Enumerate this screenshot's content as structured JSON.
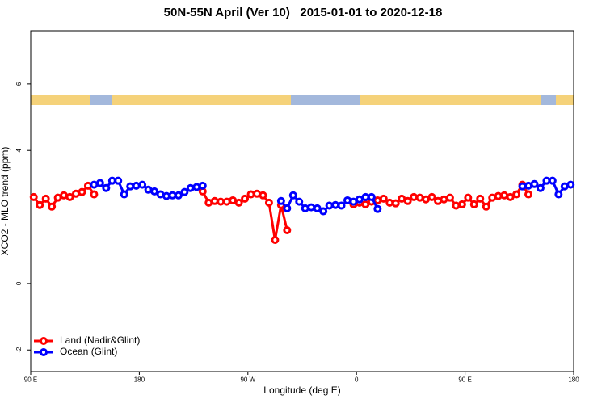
{
  "chart_data": {
    "type": "line",
    "title": "50N-55N April (Ver 10)   2015-01-01 to 2020-12-18",
    "xlabel": "Longitude (deg E)",
    "ylabel": "XCO2 - MLO trend (ppm)",
    "xlim": [
      90,
      540
    ],
    "ylim": [
      -2.65,
      7.6
    ],
    "xticks": [
      {
        "value": 90,
        "label": "90 E"
      },
      {
        "value": 180,
        "label": "180"
      },
      {
        "value": 270,
        "label": "90 W"
      },
      {
        "value": 360,
        "label": "0"
      },
      {
        "value": 450,
        "label": "90 E"
      },
      {
        "value": 540,
        "label": "180"
      }
    ],
    "yticks": [
      -2,
      0,
      4,
      6
    ],
    "legend": "bottom-left",
    "x": [
      92.5,
      97.5,
      102.5,
      107.5,
      112.5,
      117.5,
      122.5,
      127.5,
      132.5,
      137.5,
      142.5,
      147.5,
      152.5,
      157.5,
      162.5,
      167.5,
      172.5,
      177.5,
      182.5,
      187.5,
      192.5,
      197.5,
      202.5,
      207.5,
      212.5,
      217.5,
      222.5,
      227.5,
      232.5,
      237.5,
      242.5,
      247.5,
      252.5,
      257.5,
      262.5,
      267.5,
      272.5,
      277.5,
      282.5,
      287.5,
      292.5,
      297.5,
      302.5,
      307.5,
      312.5,
      317.5,
      322.5,
      327.5,
      332.5,
      337.5,
      342.5,
      347.5,
      352.5,
      357.5,
      362.5,
      367.5,
      372.5,
      377.5,
      382.5,
      387.5,
      392.5,
      397.5,
      402.5,
      407.5,
      412.5,
      417.5,
      422.5,
      427.5,
      432.5,
      437.5,
      442.5,
      447.5,
      452.5,
      457.5,
      462.5,
      467.5,
      472.5,
      477.5,
      482.5,
      487.5,
      492.5,
      497.5,
      502.5,
      507.5,
      512.5,
      517.5,
      522.5,
      527.5,
      532.5,
      537.5
    ],
    "series": [
      {
        "name": "Land (Nadir&Glint)",
        "color": "#ff0000",
        "values": [
          2.6,
          2.36,
          2.55,
          2.31,
          2.58,
          2.65,
          2.6,
          2.7,
          2.75,
          2.94,
          2.68,
          null,
          null,
          null,
          null,
          null,
          null,
          null,
          null,
          null,
          null,
          null,
          null,
          null,
          null,
          null,
          null,
          null,
          2.77,
          2.43,
          2.48,
          2.46,
          2.46,
          2.5,
          2.43,
          2.55,
          2.68,
          2.7,
          2.65,
          2.43,
          1.31,
          2.36,
          1.6,
          null,
          null,
          null,
          null,
          null,
          null,
          null,
          null,
          null,
          null,
          2.38,
          2.43,
          2.38,
          2.46,
          2.5,
          2.55,
          2.43,
          2.41,
          2.55,
          2.48,
          2.6,
          2.58,
          2.53,
          2.6,
          2.48,
          2.53,
          2.58,
          2.34,
          2.38,
          2.58,
          2.38,
          2.55,
          2.31,
          2.58,
          2.63,
          2.65,
          2.6,
          2.68,
          2.97,
          2.68,
          null,
          null,
          null,
          null,
          null,
          null,
          null
        ]
      },
      {
        "name": "Ocean (Glint)",
        "color": "#0000ff",
        "values": [
          null,
          null,
          null,
          null,
          null,
          null,
          null,
          null,
          null,
          null,
          2.97,
          3.02,
          2.87,
          3.09,
          3.09,
          2.68,
          2.92,
          2.94,
          2.97,
          2.82,
          2.77,
          2.68,
          2.63,
          2.65,
          2.65,
          2.75,
          2.87,
          2.9,
          2.94,
          null,
          null,
          null,
          null,
          null,
          null,
          null,
          null,
          null,
          null,
          null,
          null,
          2.48,
          2.26,
          2.65,
          2.46,
          2.26,
          2.29,
          2.26,
          2.17,
          2.34,
          2.36,
          2.34,
          2.5,
          2.46,
          2.53,
          2.6,
          2.6,
          2.24,
          null,
          null,
          null,
          null,
          null,
          null,
          null,
          null,
          null,
          null,
          null,
          null,
          null,
          null,
          null,
          null,
          null,
          null,
          null,
          null,
          null,
          null,
          null,
          2.92,
          2.94,
          2.99,
          2.87,
          3.09,
          3.09,
          2.68,
          2.92,
          2.97
        ]
      }
    ]
  }
}
